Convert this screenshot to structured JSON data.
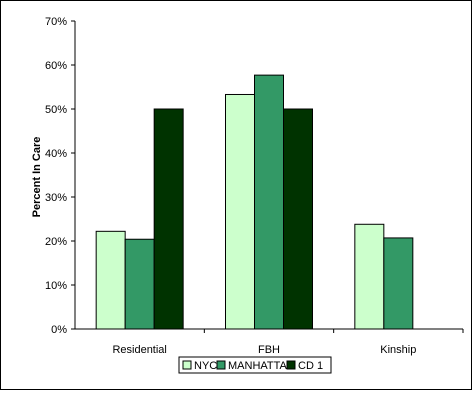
{
  "chart_data": {
    "type": "bar",
    "categories": [
      "Residential",
      "FBH",
      "Kinship"
    ],
    "series": [
      {
        "name": "NYC",
        "color": "#ccffcc",
        "values": [
          22.2,
          53.3,
          23.8
        ]
      },
      {
        "name": "MANHATTAN",
        "color": "#339966",
        "values": [
          20.4,
          57.7,
          20.7
        ]
      },
      {
        "name": "CD 1",
        "color": "#003300",
        "values": [
          50.0,
          50.0,
          null
        ]
      }
    ],
    "ylabel": "Percent In Care",
    "ylim": [
      0,
      70
    ],
    "yticks": [
      "0%",
      "10%",
      "20%",
      "30%",
      "40%",
      "50%",
      "60%",
      "70%"
    ],
    "grid": false,
    "legend_position": "bottom"
  }
}
